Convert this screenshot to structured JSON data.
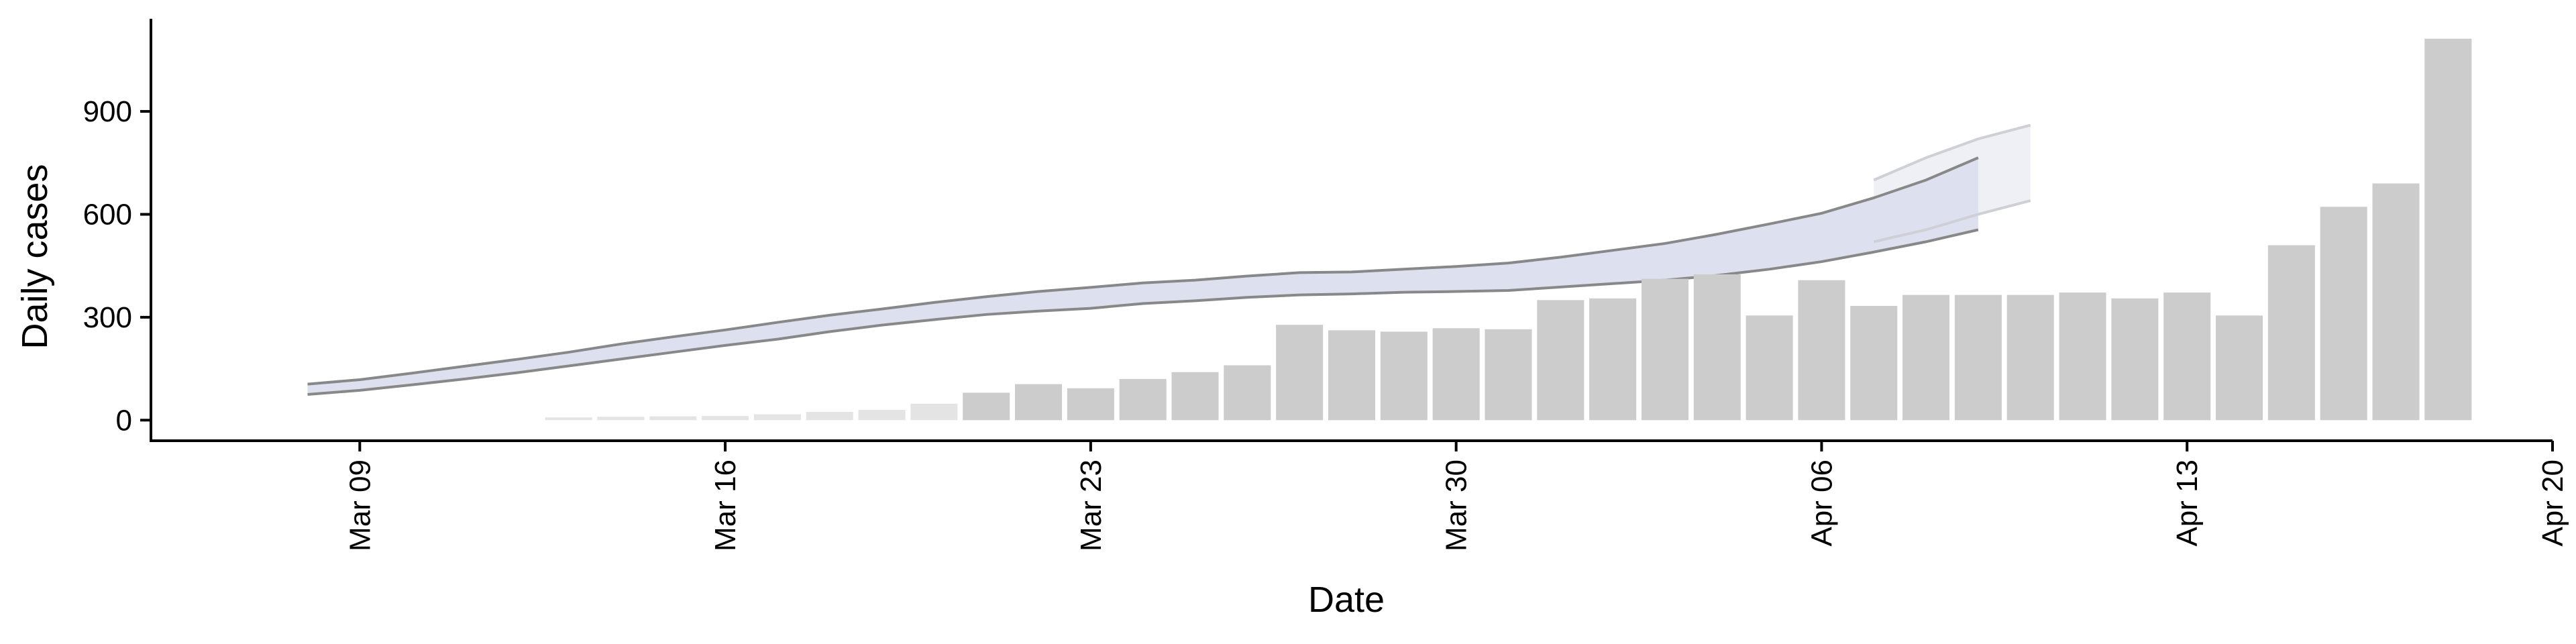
{
  "chart_data": {
    "type": "bar",
    "title": "",
    "xlabel": "Date",
    "ylabel": "Daily cases",
    "x_ticks": [
      "Mar 09",
      "Mar 16",
      "Mar 23",
      "Mar 30",
      "Apr 06",
      "Apr 13",
      "Apr 20"
    ],
    "x_tick_dates": [
      "2020-03-09",
      "2020-03-16",
      "2020-03-23",
      "2020-03-30",
      "2020-04-06",
      "2020-04-13",
      "2020-04-20"
    ],
    "y_ticks": [
      0,
      300,
      600,
      900
    ],
    "xlim": [
      "2020-03-05",
      "2020-04-20"
    ],
    "ylim": [
      -60,
      1170
    ],
    "grid": false,
    "bars": {
      "dates": [
        "2020-03-13",
        "2020-03-14",
        "2020-03-15",
        "2020-03-16",
        "2020-03-17",
        "2020-03-18",
        "2020-03-19",
        "2020-03-20",
        "2020-03-21",
        "2020-03-22",
        "2020-03-23",
        "2020-03-24",
        "2020-03-25",
        "2020-03-26",
        "2020-03-27",
        "2020-03-28",
        "2020-03-29",
        "2020-03-30",
        "2020-03-31",
        "2020-04-01",
        "2020-04-02",
        "2020-04-03",
        "2020-04-04",
        "2020-04-05",
        "2020-04-06",
        "2020-04-07",
        "2020-04-08",
        "2020-04-09",
        "2020-04-10",
        "2020-04-11",
        "2020-04-12",
        "2020-04-13",
        "2020-04-14",
        "2020-04-15",
        "2020-04-16",
        "2020-04-17",
        "2020-04-18",
        "2020-04-19"
      ],
      "values": [
        8,
        10,
        11,
        12,
        17,
        24,
        30,
        48,
        80,
        105,
        93,
        120,
        140,
        160,
        278,
        262,
        258,
        268,
        265,
        350,
        355,
        412,
        425,
        305,
        408,
        333,
        365,
        365,
        365,
        372,
        355,
        372,
        305,
        510,
        622,
        690,
        1112,
        0
      ],
      "fade_first": 8,
      "color": "#cccccc",
      "faded_color": "#e4e4e4"
    },
    "projection": {
      "dates": [
        "2020-03-08",
        "2020-03-09",
        "2020-03-10",
        "2020-03-11",
        "2020-03-12",
        "2020-03-13",
        "2020-03-14",
        "2020-03-15",
        "2020-03-16",
        "2020-03-17",
        "2020-03-18",
        "2020-03-19",
        "2020-03-20",
        "2020-03-21",
        "2020-03-22",
        "2020-03-23",
        "2020-03-24",
        "2020-03-25",
        "2020-03-26",
        "2020-03-27",
        "2020-03-28",
        "2020-03-29",
        "2020-03-30",
        "2020-03-31",
        "2020-04-01",
        "2020-04-02",
        "2020-04-03",
        "2020-04-04",
        "2020-04-05",
        "2020-04-06",
        "2020-04-07",
        "2020-04-08",
        "2020-04-09"
      ],
      "lower": [
        75,
        87,
        103,
        120,
        138,
        158,
        178,
        198,
        218,
        236,
        258,
        277,
        293,
        308,
        318,
        326,
        340,
        348,
        358,
        365,
        368,
        373,
        375,
        378,
        388,
        398,
        408,
        422,
        440,
        462,
        490,
        520,
        555
      ],
      "upper": [
        105,
        118,
        137,
        157,
        177,
        198,
        222,
        243,
        263,
        285,
        306,
        324,
        343,
        360,
        375,
        387,
        400,
        408,
        420,
        430,
        432,
        440,
        448,
        458,
        475,
        495,
        515,
        542,
        572,
        603,
        648,
        700,
        765
      ],
      "outer_lower": [
        520,
        555,
        600,
        640
      ],
      "outer_upper": [
        700,
        765,
        820,
        860
      ],
      "outer_dates": [
        "2020-04-07",
        "2020-04-08",
        "2020-04-09",
        "2020-04-10"
      ],
      "line_color": "#888888",
      "band_color": "#dde0ee",
      "outer_band_color": "#eef0f6"
    }
  }
}
